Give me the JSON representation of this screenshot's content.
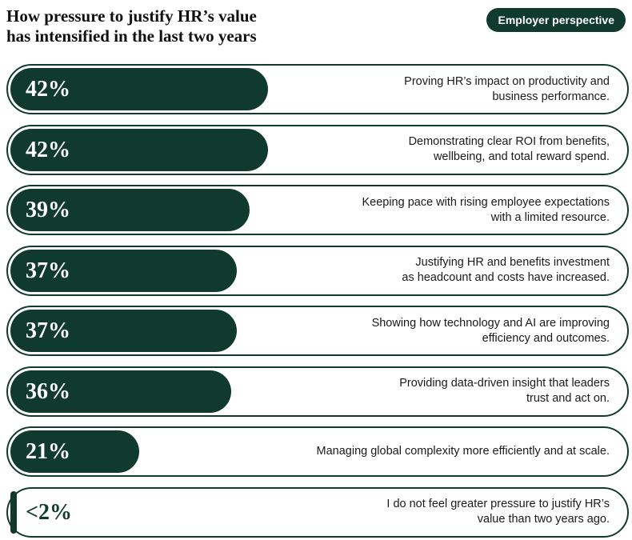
{
  "chart_data": {
    "type": "bar",
    "orientation": "horizontal",
    "title": "How pressure to justify HR’s value\nhas intensified in the last two years",
    "badge": "Employer perspective",
    "categories": [
      "Proving HR’s impact on productivity and\nbusiness performance.",
      "Demonstrating clear ROI from benefits,\nwellbeing, and total reward spend.",
      "Keeping pace with rising employee expectations\nwith a limited resource.",
      "Justifying HR and benefits investment\nas headcount and costs have increased.",
      "Showing how technology and AI are improving\nefficiency and outcomes.",
      "Providing data-driven insight that leaders\ntrust and act on.",
      "Managing global complexity more efficiently and at scale.",
      "I do not feel greater pressure to justify HR’s\nvalue than two years ago."
    ],
    "values": [
      42,
      42,
      39,
      37,
      37,
      36,
      21,
      1
    ],
    "value_labels": [
      "42%",
      "42%",
      "39%",
      "37%",
      "37%",
      "36%",
      "21%",
      "<2%"
    ],
    "color": "#0f3a2d",
    "xlim": [
      0,
      100
    ]
  }
}
